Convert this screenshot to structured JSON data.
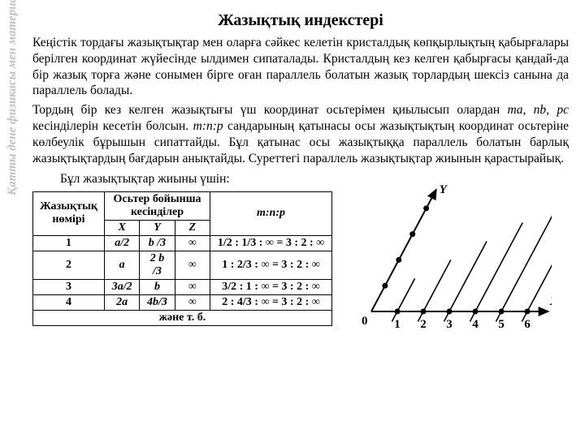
{
  "sideLabel": "Қатты дене физикасы мен материалтану кафедрасы",
  "title": "Жазықтық индекстері",
  "para1": "Кеңістік тордағы жазықтықтар мен оларға сәйкес келетін кристалдық көпқырлықтың қабырғалары берілген координат жүйесінде ылдимен сипаталады. Кристалдың кез келген қабырғасы қандай-да бір жазық торға және сонымен бірге оған параллель болатын жазық торлардың шексіз санына да параллель болады.",
  "para2_a": "Тордың бір кез келген жазықтығы үш координат осьтерімен қиылысып олардан ",
  "para2_ma": "ma",
  "para2_b": ", ",
  "para2_nb": "nb",
  "para2_c": ", ",
  "para2_pc": "pc",
  "para2_d": " кесінділерін  кесетін болсын. ",
  "para2_mnp": "m:n:p",
  "para2_e": " сандарының қатынасы осы жазықтықтың координат осьтеріне көлбеулік бұрышын сипаттайды. Бұл қатынас осы жазықтыққа параллель болатын барлық жазықтықтардың бағдарын анықтайды. Суреттегі параллель жазықтықтар жиынын қарастырайық.",
  "subline": "Бұл жазықтықтар жиыны үшін:",
  "table": {
    "head_plane": "Жазықтық нөмірі",
    "head_cuts": "Осьтер бойынша кесінділер",
    "head_ratio": "m:n:p",
    "sub_x": "X",
    "sub_y": "Y",
    "sub_z": "Z",
    "rows": [
      {
        "n": "1",
        "x": "a/2",
        "y": "b /3",
        "z": "∞",
        "r": "1/2 : 1/3 : ∞  =  3 : 2 : ∞"
      },
      {
        "n": "2",
        "x": "a",
        "y": "2 b /3",
        "z": "∞",
        "r": "1 : 2/3 : ∞  =  3 : 2 : ∞"
      },
      {
        "n": "3",
        "x": "3a/2",
        "y": "b",
        "z": "∞",
        "r": "3/2 : 1 : ∞  =  3 : 2 : ∞"
      },
      {
        "n": "4",
        "x": "2a",
        "y": "4b/3",
        "z": "∞",
        "r": "2 : 4/3 : ∞  =  3 : 2 : ∞"
      }
    ],
    "footer": "және т. б."
  },
  "chart": {
    "axis_color": "#000000",
    "line_width": 2,
    "point_radius": 3.5,
    "x_label": "X",
    "y_label": "Y",
    "origin_label": "0",
    "x_ticks": [
      "1",
      "2",
      "3",
      "4",
      "5",
      "6"
    ],
    "font_size": 15
  }
}
